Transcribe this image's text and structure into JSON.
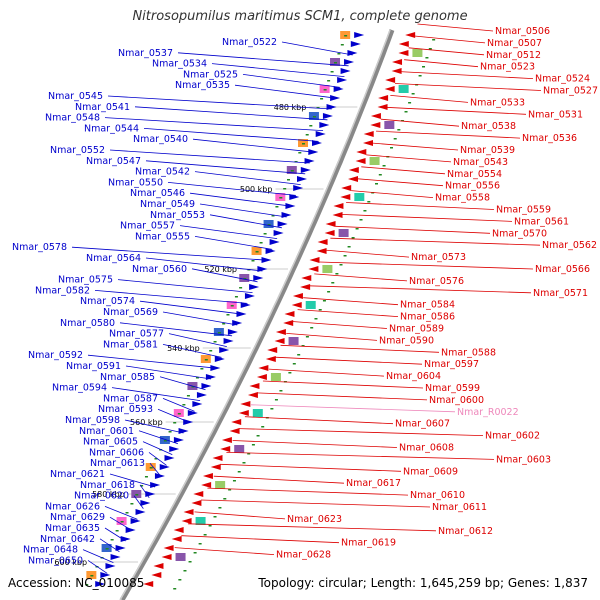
{
  "title": "Nitrosopumilus maritimus SCM1, complete genome",
  "accession": "Accession: NC_010085",
  "topology": "Topology: circular; Length: 1,645,259 bp; Genes: 1,837",
  "colors": {
    "plus": "#0000cc",
    "minus": "#dd0000",
    "rna": "#ee88bb",
    "backbone": "#888888"
  },
  "ticks": [
    "480 kbp",
    "500 kbp",
    "520 kbp",
    "540 kbp",
    "560 kbp",
    "580 kbp",
    "600 kbp"
  ],
  "left_labels": [
    "Nmar_0522",
    "Nmar_0537",
    "Nmar_0534",
    "Nmar_0525",
    "Nmar_0535",
    "Nmar_0545",
    "Nmar_0541",
    "Nmar_0548",
    "Nmar_0544",
    "Nmar_0540",
    "Nmar_0552",
    "Nmar_0547",
    "Nmar_0542",
    "Nmar_0550",
    "Nmar_0546",
    "Nmar_0549",
    "Nmar_0553",
    "Nmar_0557",
    "Nmar_0555",
    "Nmar_0578",
    "Nmar_0564",
    "Nmar_0560",
    "Nmar_0575",
    "Nmar_0582",
    "Nmar_0574",
    "Nmar_0569",
    "Nmar_0580",
    "Nmar_0577",
    "Nmar_0581",
    "Nmar_0592",
    "Nmar_0591",
    "Nmar_0585",
    "Nmar_0594",
    "Nmar_0587",
    "Nmar_0593",
    "Nmar_0598",
    "Nmar_0601",
    "Nmar_0605",
    "Nmar_0606",
    "Nmar_0613",
    "Nmar_0621",
    "Nmar_0618",
    "Nmar_0620",
    "Nmar_0626",
    "Nmar_0629",
    "Nmar_0635",
    "Nmar_0642",
    "Nmar_0648",
    "Nmar_0650"
  ],
  "right_labels": [
    "Nmar_0506",
    "Nmar_0507",
    "Nmar_0512",
    "Nmar_0523",
    "Nmar_0524",
    "Nmar_0527",
    "Nmar_0533",
    "Nmar_0531",
    "Nmar_0538",
    "Nmar_0536",
    "Nmar_0539",
    "Nmar_0543",
    "Nmar_0554",
    "Nmar_0556",
    "Nmar_0558",
    "Nmar_0559",
    "Nmar_0561",
    "Nmar_0570",
    "Nmar_0562",
    "Nmar_0573",
    "Nmar_0566",
    "Nmar_0576",
    "Nmar_0571",
    "Nmar_0584",
    "Nmar_0586",
    "Nmar_0589",
    "Nmar_0590",
    "Nmar_0588",
    "Nmar_0597",
    "Nmar_0604",
    "Nmar_0599",
    "Nmar_0600",
    "Nmar_R0022",
    "Nmar_0607",
    "Nmar_0602",
    "Nmar_0608",
    "Nmar_0603",
    "Nmar_0609",
    "Nmar_0617",
    "Nmar_0610",
    "Nmar_0611",
    "Nmar_0623",
    "Nmar_0612",
    "Nmar_0619",
    "Nmar_0628"
  ]
}
